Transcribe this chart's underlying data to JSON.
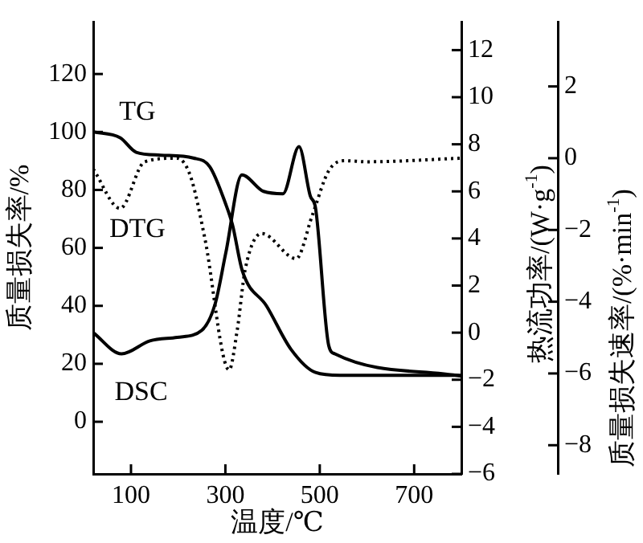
{
  "chart_data": {
    "type": "line",
    "xlabel": "温度/℃",
    "ylabel": "质量损失率/%",
    "y2label": "热流功率/(W·g$^{-1}$)",
    "y3label": "质量损失速率/(%·min$^{-1}$)",
    "xlim": [
      20,
      800
    ],
    "xticks": [
      100,
      300,
      500,
      700
    ],
    "ylim": [
      -18,
      138
    ],
    "yticks": [
      0,
      20,
      40,
      60,
      80,
      100,
      120
    ],
    "y2lim": [
      -6,
      13.2
    ],
    "y2ticks": [
      -6,
      -4,
      -2,
      0,
      2,
      4,
      6,
      8,
      10,
      12
    ],
    "y3lim": [
      -8.8,
      3.8
    ],
    "y3ticks": [
      -8,
      -6,
      -4,
      -2,
      0,
      2
    ],
    "grid": false,
    "legend": false,
    "marker": "none",
    "series": [
      {
        "color": "#000000",
        "axis": "y",
        "line_style": "solid",
        "x": [
          20,
          77,
          111,
          163,
          232,
          267,
          301,
          315,
          336,
          387,
          439,
          491,
          543,
          800
        ],
        "values": [
          100,
          98,
          93,
          92,
          91,
          88,
          75,
          68,
          52,
          40,
          25,
          17,
          16,
          16
        ]
      },
      {
        "color": "#000000",
        "axis": "y2",
        "line_style": "solid",
        "x": [
          20,
          80,
          140,
          198,
          250,
          278,
          301,
          335,
          381,
          422,
          456,
          480,
          491,
          519,
          532,
          800
        ],
        "values": [
          0,
          -0.9,
          -0.35,
          -0.2,
          0.1,
          1.2,
          3.4,
          6.7,
          6.0,
          5.9,
          7.9,
          5.8,
          5.3,
          -0.55,
          -0.9,
          -1.85
        ]
      },
      {
        "color": "#000000",
        "axis": "y3",
        "line_style": "dotted",
        "x": [
          20,
          77,
          129,
          198,
          226,
          256,
          308,
          325,
          342,
          377,
          450,
          484,
          519,
          553,
          600,
          800
        ],
        "values": [
          -0.3,
          -1.4,
          -0.1,
          0,
          -0.5,
          -2.2,
          -5.9,
          -4.8,
          -3.1,
          -2.1,
          -2.8,
          -1.6,
          -0.35,
          -0.07,
          -0.1,
          0
        ]
      }
    ],
    "annotations": [
      "TG",
      "DTG",
      "DSC"
    ]
  }
}
